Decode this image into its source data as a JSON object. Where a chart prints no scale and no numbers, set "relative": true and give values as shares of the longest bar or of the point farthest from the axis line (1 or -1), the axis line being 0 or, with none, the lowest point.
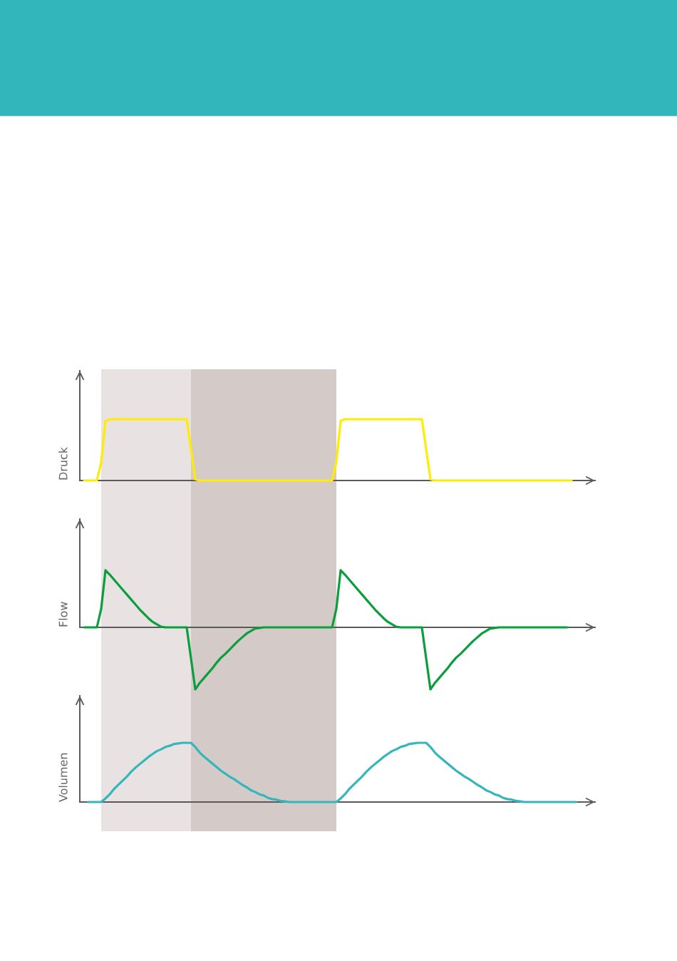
{
  "chart_data": [
    {
      "type": "line",
      "ylabel": "Druck",
      "relative": true,
      "grid": false,
      "categories": [
        null,
        null,
        null,
        null,
        null,
        null,
        null,
        null,
        null,
        null,
        null,
        null,
        null,
        null,
        null,
        null,
        null,
        null,
        null,
        null,
        null,
        null,
        null,
        null,
        null,
        null,
        null,
        null,
        null,
        null,
        null,
        null,
        null,
        null,
        null,
        null,
        null,
        null,
        null,
        null,
        null,
        null,
        null,
        null,
        null,
        null,
        null,
        null,
        null,
        null,
        null,
        null,
        null,
        null,
        null,
        null,
        null,
        null,
        null,
        null,
        null,
        null,
        null,
        null,
        null,
        null,
        null,
        null,
        null,
        null,
        null,
        null,
        null,
        null,
        null,
        null,
        null,
        null,
        null,
        null,
        null,
        null,
        null,
        null,
        null,
        null,
        null,
        null,
        null,
        null,
        null,
        null,
        null,
        null,
        null,
        null,
        null,
        null,
        null,
        null,
        null,
        null,
        null,
        null,
        null,
        null,
        null,
        null,
        null,
        null,
        null,
        null,
        null,
        null,
        null,
        null
      ],
      "series": [
        {
          "color": "#ffec00",
          "values": [
            0,
            0,
            0,
            0,
            0.3,
            0.97,
            1,
            1,
            1,
            1,
            1,
            1,
            1,
            1,
            1,
            1,
            1,
            1,
            1,
            1,
            1,
            1,
            1,
            1,
            1,
            0.51,
            0.02,
            0,
            0,
            0,
            0,
            0,
            0,
            0,
            0,
            0,
            0,
            0,
            0,
            0,
            0,
            0,
            0,
            0,
            0,
            0,
            0,
            0,
            0,
            0,
            0,
            0,
            0,
            0,
            0,
            0,
            0,
            0,
            0,
            0.3,
            0.97,
            1,
            1,
            1,
            1,
            1,
            1,
            1,
            1,
            1,
            1,
            1,
            1,
            1,
            1,
            1,
            1,
            1,
            1,
            1,
            0.51,
            0.02,
            0,
            0,
            0,
            0,
            0,
            0,
            0,
            0,
            0,
            0,
            0,
            0,
            0,
            0,
            0,
            0,
            0,
            0,
            0,
            0,
            0,
            0,
            0,
            0,
            0,
            0,
            0,
            0,
            0,
            0,
            0,
            0,
            0,
            null
          ]
        }
      ]
    },
    {
      "type": "line",
      "ylabel": "Flow",
      "relative": true,
      "grid": false,
      "categories": [
        null,
        null,
        null,
        null,
        null,
        null,
        null,
        null,
        null,
        null,
        null,
        null,
        null,
        null,
        null,
        null,
        null,
        null,
        null,
        null,
        null,
        null,
        null,
        null,
        null,
        null,
        null,
        null,
        null,
        null,
        null,
        null,
        null,
        null,
        null,
        null,
        null,
        null,
        null,
        null,
        null,
        null,
        null,
        null,
        null,
        null,
        null,
        null,
        null,
        null,
        null,
        null,
        null,
        null,
        null,
        null,
        null,
        null,
        null,
        null,
        null,
        null,
        null,
        null,
        null,
        null,
        null,
        null,
        null,
        null,
        null,
        null,
        null,
        null,
        null,
        null,
        null,
        null,
        null,
        null,
        null,
        null,
        null,
        null,
        null,
        null,
        null,
        null,
        null,
        null,
        null,
        null,
        null,
        null,
        null,
        null,
        null,
        null,
        null,
        null,
        null,
        null,
        null,
        null,
        null,
        null,
        null,
        null,
        null,
        null,
        null,
        null,
        null,
        null,
        null,
        null
      ],
      "series": [
        {
          "color": "#0a9e3c",
          "values": [
            0,
            0,
            0,
            0,
            0.3,
            0.92,
            0.85,
            0.77,
            0.69,
            0.61,
            0.53,
            0.45,
            0.37,
            0.29,
            0.22,
            0.15,
            0.09,
            0.05,
            0.01,
            0,
            0,
            0,
            0,
            0,
            0,
            -0.5,
            -1,
            -0.9,
            -0.82,
            -0.74,
            -0.66,
            -0.57,
            -0.49,
            -0.43,
            -0.36,
            -0.29,
            -0.22,
            -0.16,
            -0.1,
            -0.06,
            -0.02,
            -0.01,
            0,
            0,
            0,
            0,
            0,
            0,
            0,
            0,
            0,
            0,
            0,
            0,
            0,
            0,
            0,
            0,
            0,
            0.3,
            0.92,
            0.85,
            0.77,
            0.69,
            0.61,
            0.53,
            0.45,
            0.37,
            0.29,
            0.22,
            0.15,
            0.09,
            0.05,
            0.01,
            0,
            0,
            0,
            0,
            0,
            0,
            -0.5,
            -1,
            -0.9,
            -0.82,
            -0.74,
            -0.66,
            -0.57,
            -0.49,
            -0.43,
            -0.36,
            -0.29,
            -0.22,
            -0.16,
            -0.1,
            -0.06,
            -0.02,
            -0.01,
            0,
            0,
            0,
            0,
            0,
            0,
            0,
            0,
            0,
            0,
            0,
            0,
            0,
            0,
            0,
            0,
            0,
            null,
            null
          ]
        }
      ]
    },
    {
      "type": "line",
      "ylabel": "Volumen",
      "relative": true,
      "grid": false,
      "categories": [
        null,
        null,
        null,
        null,
        null,
        null,
        null,
        null,
        null,
        null,
        null,
        null,
        null,
        null,
        null,
        null,
        null,
        null,
        null,
        null,
        null,
        null,
        null,
        null,
        null,
        null,
        null,
        null,
        null,
        null,
        null,
        null,
        null,
        null,
        null,
        null,
        null,
        null,
        null,
        null,
        null,
        null,
        null,
        null,
        null,
        null,
        null,
        null,
        null,
        null,
        null,
        null,
        null,
        null,
        null,
        null,
        null,
        null,
        null,
        null,
        null,
        null,
        null,
        null,
        null,
        null,
        null,
        null,
        null,
        null,
        null,
        null,
        null,
        null,
        null,
        null,
        null,
        null,
        null,
        null,
        null,
        null,
        null,
        null,
        null,
        null,
        null,
        null,
        null,
        null,
        null,
        null,
        null,
        null,
        null,
        null,
        null,
        null,
        null,
        null,
        null,
        null,
        null,
        null,
        null,
        null,
        null,
        null,
        null,
        null,
        null,
        null,
        null,
        null,
        null,
        null
      ],
      "series": [
        {
          "color": "#34b6ba",
          "values": [
            null,
            0,
            0,
            0,
            0,
            0.06,
            0.13,
            0.22,
            0.29,
            0.36,
            0.43,
            0.51,
            0.58,
            0.64,
            0.7,
            0.76,
            0.81,
            0.86,
            0.89,
            0.93,
            0.95,
            0.98,
            0.99,
            1,
            1,
            1,
            0.93,
            0.84,
            0.77,
            0.71,
            0.65,
            0.59,
            0.53,
            0.48,
            0.43,
            0.39,
            0.34,
            0.29,
            0.25,
            0.2,
            0.17,
            0.13,
            0.11,
            0.07,
            0.05,
            0.04,
            0.02,
            0.01,
            0,
            0,
            0,
            0,
            0,
            0,
            0,
            0,
            0,
            0,
            0,
            0,
            0.06,
            0.13,
            0.22,
            0.29,
            0.36,
            0.43,
            0.51,
            0.58,
            0.64,
            0.7,
            0.76,
            0.81,
            0.86,
            0.89,
            0.93,
            0.95,
            0.98,
            0.99,
            1,
            1,
            1,
            0.93,
            0.84,
            0.77,
            0.71,
            0.65,
            0.59,
            0.53,
            0.48,
            0.43,
            0.39,
            0.34,
            0.29,
            0.25,
            0.2,
            0.17,
            0.13,
            0.11,
            0.07,
            0.05,
            0.04,
            0.02,
            0.01,
            0,
            0,
            0,
            0,
            0,
            0,
            0,
            0,
            0,
            0,
            0,
            0,
            0
          ]
        }
      ]
    }
  ]
}
